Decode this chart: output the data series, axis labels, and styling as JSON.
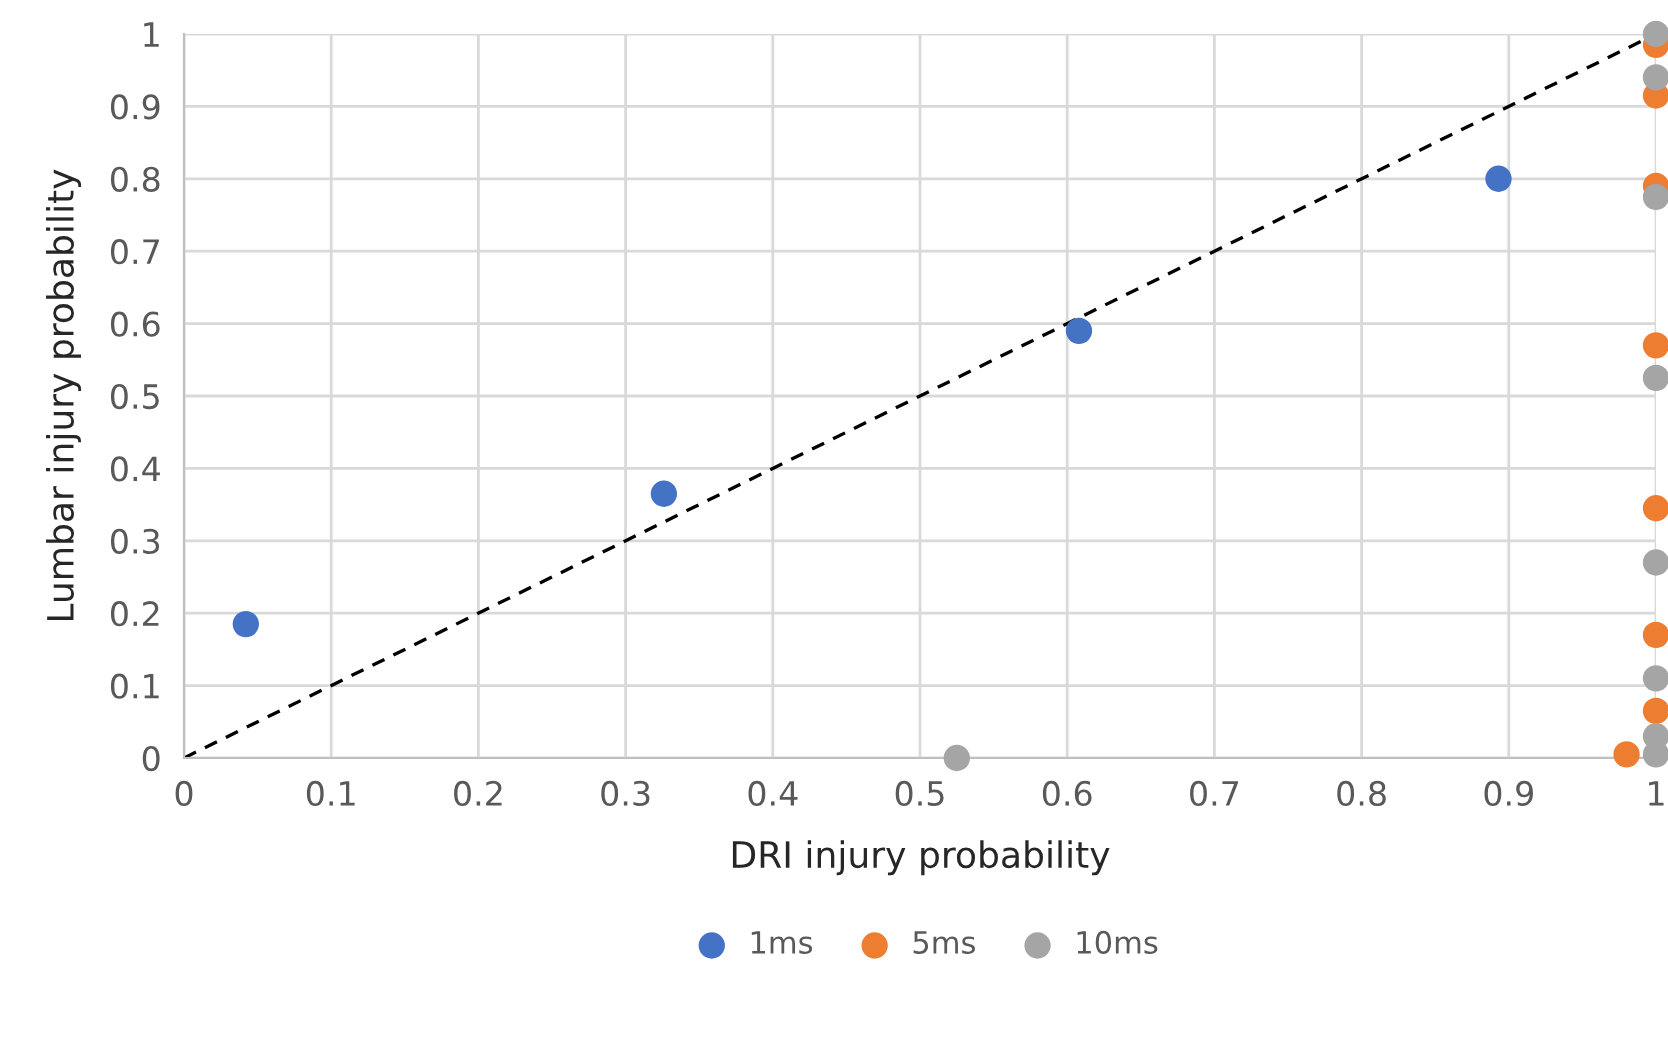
{
  "chart_data": {
    "type": "scatter",
    "xlabel": "DRI injury probability",
    "ylabel": "Lumbar injury probability",
    "xlim": [
      0,
      1
    ],
    "ylim": [
      0,
      1
    ],
    "xticks": [
      0,
      0.1,
      0.2,
      0.3,
      0.4,
      0.5,
      0.6,
      0.7,
      0.8,
      0.9,
      1
    ],
    "yticks": [
      0,
      0.1,
      0.2,
      0.3,
      0.4,
      0.5,
      0.6,
      0.7,
      0.8,
      0.9,
      1
    ],
    "grid": true,
    "legend": "bottom",
    "marker": "circle",
    "series": [
      {
        "type": "line",
        "color": "#000000",
        "line_style": "dashed",
        "marker": "none",
        "x": [
          0,
          1
        ],
        "values": [
          0,
          1
        ]
      },
      {
        "name": "1ms",
        "color": "#4472c4",
        "x": [
          0.042,
          0.326,
          0.608,
          0.893
        ],
        "values": [
          0.185,
          0.365,
          0.59,
          0.8
        ]
      },
      {
        "name": "5ms",
        "color": "#ed7d31",
        "x": [
          1,
          1,
          1,
          1,
          1,
          1,
          1,
          0.98
        ],
        "values": [
          0.985,
          0.915,
          0.79,
          0.57,
          0.345,
          0.17,
          0.065,
          0.005
        ]
      },
      {
        "name": "10ms",
        "color": "#a5a5a5",
        "x": [
          0.525,
          1,
          1,
          1,
          1,
          1,
          1,
          1,
          1
        ],
        "values": [
          0,
          1,
          0.94,
          0.775,
          0.525,
          0.27,
          0.11,
          0.03,
          0.005
        ]
      }
    ]
  }
}
